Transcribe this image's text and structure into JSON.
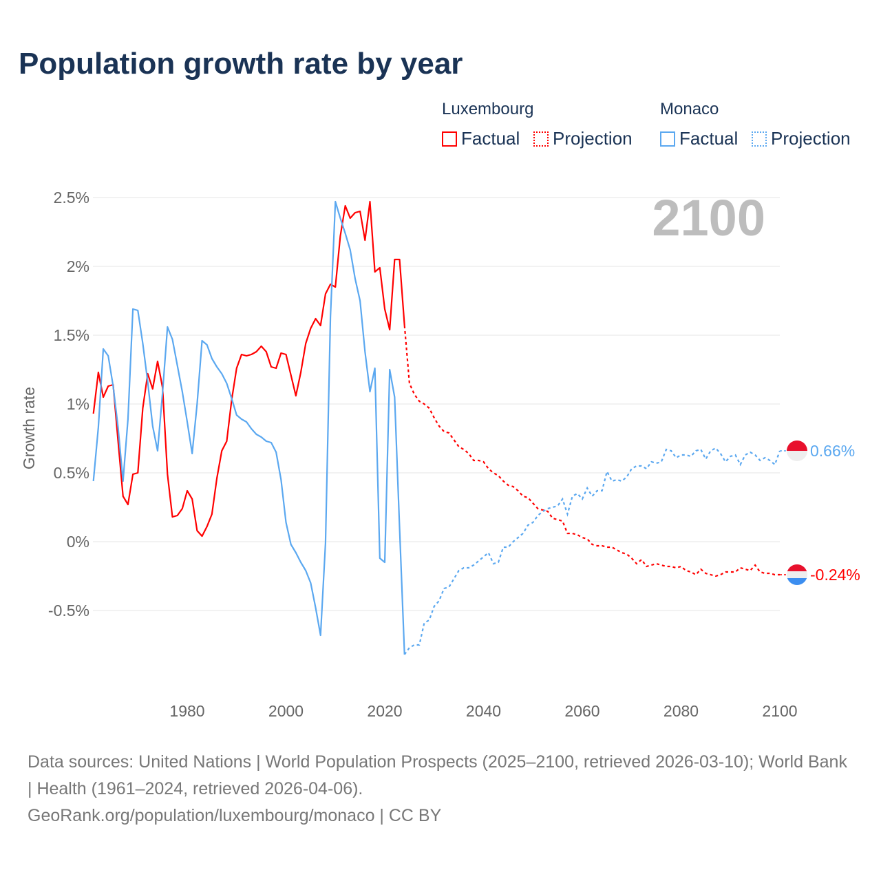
{
  "title": "Population growth rate by year",
  "legend": {
    "groups": [
      {
        "name": "Luxembourg",
        "factual": "Factual",
        "projection": "Projection",
        "color": "#ff0000"
      },
      {
        "name": "Monaco",
        "factual": "Factual",
        "projection": "Projection",
        "color": "#5ba8f0"
      }
    ]
  },
  "year_watermark": "2100",
  "footer": {
    "sources": "Data sources: United Nations | World Population Prospects (2025–2100, retrieved 2026-03-10); World Bank | Health (1961–2024, retrieved 2026-04-06).",
    "credit": "GeoRank.org/population/luxembourg/monaco | CC BY"
  },
  "chart_data": {
    "type": "line",
    "title": "Population growth rate by year",
    "xlabel": "",
    "ylabel": "Growth rate",
    "xlim": [
      1961,
      2100
    ],
    "ylim": [
      -1.09,
      2.5
    ],
    "x_ticks": [
      1980,
      2000,
      2020,
      2040,
      2060,
      2080,
      2100
    ],
    "y_ticks": [
      {
        "v": 2.5,
        "label": "2.5%"
      },
      {
        "v": 2,
        "label": "2%"
      },
      {
        "v": 1.5,
        "label": "1.5%"
      },
      {
        "v": 1,
        "label": "1%"
      },
      {
        "v": 0.5,
        "label": "0.5%"
      },
      {
        "v": 0,
        "label": "0%"
      },
      {
        "v": -0.5,
        "label": "-0.5%"
      }
    ],
    "grid": true,
    "factual_start": 1961,
    "projection_start": 2025,
    "series": [
      {
        "name": "Luxembourg",
        "color": "#ff0000",
        "end_label": "-0.24%",
        "factual": [
          0.93,
          1.23,
          1.05,
          1.13,
          1.14,
          0.73,
          0.33,
          0.27,
          0.49,
          0.5,
          0.97,
          1.22,
          1.11,
          1.31,
          1.12,
          0.49,
          0.18,
          0.19,
          0.24,
          0.37,
          0.31,
          0.08,
          0.04,
          0.11,
          0.2,
          0.46,
          0.66,
          0.73,
          1.03,
          1.26,
          1.36,
          1.35,
          1.36,
          1.38,
          1.42,
          1.38,
          1.27,
          1.26,
          1.37,
          1.36,
          1.21,
          1.06,
          1.23,
          1.44,
          1.55,
          1.62,
          1.57,
          1.8,
          1.87,
          1.85,
          2.22,
          2.44,
          2.35,
          2.39,
          2.4,
          2.19,
          2.47,
          1.96,
          1.99,
          1.69,
          1.54,
          2.05,
          2.05,
          1.57
        ],
        "projection": [
          1.15,
          1.07,
          1.02,
          1.0,
          0.97,
          0.9,
          0.84,
          0.8,
          0.79,
          0.74,
          0.69,
          0.67,
          0.64,
          0.59,
          0.59,
          0.58,
          0.53,
          0.5,
          0.48,
          0.44,
          0.41,
          0.4,
          0.37,
          0.33,
          0.32,
          0.28,
          0.24,
          0.23,
          0.22,
          0.17,
          0.16,
          0.15,
          0.06,
          0.06,
          0.05,
          0.03,
          0.02,
          -0.02,
          -0.03,
          -0.03,
          -0.04,
          -0.04,
          -0.06,
          -0.08,
          -0.09,
          -0.12,
          -0.16,
          -0.13,
          -0.18,
          -0.17,
          -0.16,
          -0.17,
          -0.18,
          -0.18,
          -0.19,
          -0.18,
          -0.21,
          -0.22,
          -0.24,
          -0.2,
          -0.23,
          -0.24,
          -0.25,
          -0.24,
          -0.22,
          -0.22,
          -0.22,
          -0.19,
          -0.2,
          -0.21,
          -0.17,
          -0.22,
          -0.23,
          -0.23,
          -0.24,
          -0.24
        ]
      },
      {
        "name": "Monaco",
        "color": "#5ba8f0",
        "end_label": "0.66%",
        "factual": [
          0.44,
          0.83,
          1.4,
          1.35,
          1.13,
          0.83,
          0.44,
          0.89,
          1.69,
          1.68,
          1.44,
          1.16,
          0.84,
          0.66,
          1.08,
          1.56,
          1.47,
          1.28,
          1.09,
          0.87,
          0.64,
          1.0,
          1.46,
          1.43,
          1.33,
          1.27,
          1.22,
          1.15,
          1.04,
          0.92,
          0.89,
          0.87,
          0.82,
          0.78,
          0.76,
          0.73,
          0.72,
          0.65,
          0.45,
          0.14,
          -0.02,
          -0.08,
          -0.15,
          -0.21,
          -0.3,
          -0.48,
          -0.68,
          -0.01,
          1.63,
          2.47,
          2.35,
          2.24,
          2.12,
          1.91,
          1.75,
          1.38,
          1.09,
          1.26,
          -0.12,
          -0.15,
          1.25,
          1.05,
          0.1,
          -0.82
        ],
        "projection": [
          -0.77,
          -0.75,
          -0.75,
          -0.59,
          -0.57,
          -0.47,
          -0.43,
          -0.34,
          -0.33,
          -0.27,
          -0.21,
          -0.19,
          -0.19,
          -0.17,
          -0.14,
          -0.11,
          -0.08,
          -0.16,
          -0.15,
          -0.04,
          -0.04,
          0.0,
          0.03,
          0.06,
          0.12,
          0.14,
          0.19,
          0.22,
          0.24,
          0.25,
          0.26,
          0.31,
          0.2,
          0.33,
          0.35,
          0.31,
          0.39,
          0.33,
          0.37,
          0.37,
          0.51,
          0.44,
          0.45,
          0.44,
          0.47,
          0.53,
          0.55,
          0.55,
          0.53,
          0.58,
          0.57,
          0.58,
          0.67,
          0.66,
          0.61,
          0.63,
          0.63,
          0.62,
          0.66,
          0.67,
          0.6,
          0.66,
          0.68,
          0.64,
          0.58,
          0.62,
          0.63,
          0.56,
          0.63,
          0.65,
          0.63,
          0.59,
          0.61,
          0.59,
          0.56,
          0.66
        ]
      }
    ]
  }
}
